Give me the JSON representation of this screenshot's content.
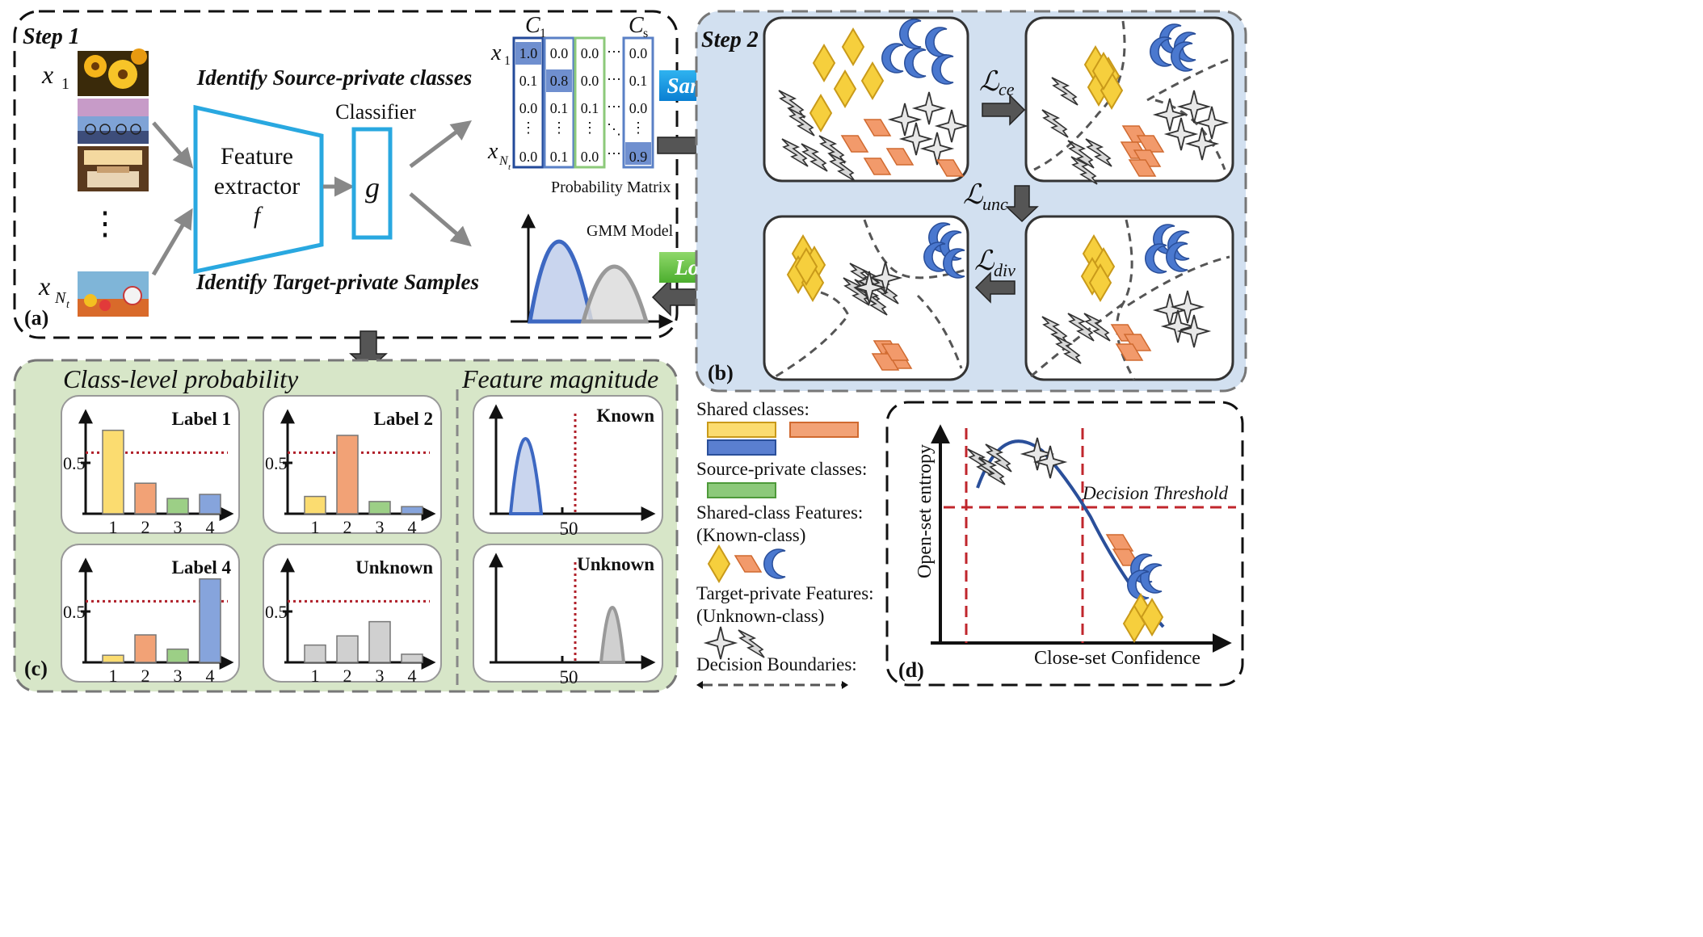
{
  "panel_a": {
    "step_label": "Step 1",
    "panel_label": "(a)",
    "input_labels": [
      "x",
      "1",
      "x",
      "N",
      "t"
    ],
    "ellipsis": "⋮",
    "feature_extractor": [
      "Feature",
      "extractor",
      "f"
    ],
    "classifier_title": "Classifier",
    "classifier_symbol": "g",
    "identify_source": "Identify Source-private classes",
    "identify_target": "Identify Target-private Samples",
    "matrix": {
      "col_labels": [
        "C",
        "1",
        "C",
        "s"
      ],
      "row_labels": [
        "x",
        "1",
        "x",
        "N",
        "t"
      ],
      "rows": [
        [
          "1.0",
          "0.0",
          "0.0",
          "0.0"
        ],
        [
          "0.1",
          "0.8",
          "0.0",
          "0.1"
        ],
        [
          "0.0",
          "0.1",
          "0.1",
          "0.0"
        ],
        [
          "0.0",
          "0.1",
          "0.0",
          "0.9"
        ]
      ],
      "caption": "Probability Matrix"
    },
    "gmm_caption": "GMM Model"
  },
  "arrows": {
    "samples": "Samples",
    "losses": "Losses"
  },
  "panel_b": {
    "step_label": "Step 2",
    "panel_label": "(b)",
    "losses": [
      "ce",
      "unc",
      "div"
    ],
    "loss_symbol": "ℒ"
  },
  "panel_c": {
    "panel_label": "(c)",
    "title_left": "Class-level probability",
    "title_right": "Feature magnitude",
    "prob_charts": [
      {
        "label": "Label 1",
        "values": [
          0.82,
          0.3,
          0.15,
          0.19
        ],
        "colors": [
          "#fbdc70",
          "#f2a276",
          "#9ccf86",
          "#86a4dc"
        ]
      },
      {
        "label": "Label 2",
        "values": [
          0.17,
          0.77,
          0.12,
          0.07
        ],
        "colors": [
          "#fbdc70",
          "#f2a276",
          "#9ccf86",
          "#86a4dc"
        ]
      },
      {
        "label": "Label 4",
        "values": [
          0.07,
          0.27,
          0.13,
          0.82
        ],
        "colors": [
          "#fbdc70",
          "#f2a276",
          "#9ccf86",
          "#86a4dc"
        ]
      },
      {
        "label": "Unknown",
        "values": [
          0.17,
          0.26,
          0.4,
          0.08
        ],
        "colors": [
          "#d0d0d0",
          "#d0d0d0",
          "#d0d0d0",
          "#d0d0d0"
        ]
      }
    ],
    "categories": [
      "1",
      "2",
      "3",
      "4"
    ],
    "tick_label": "0.5",
    "mag_charts": [
      {
        "label": "Known",
        "tick": "50"
      },
      {
        "label": "Unknown",
        "tick": "50"
      }
    ]
  },
  "legend": {
    "shared_classes": "Shared classes:",
    "source_private": "Source-private classes:",
    "shared_features": [
      "Shared-class Features:",
      "(Known-class)"
    ],
    "target_features": [
      "Target-private Features:",
      "(Unknown-class)"
    ],
    "boundaries": "Decision Boundaries:",
    "colors": {
      "yellow": "#fbdc70",
      "orange": "#f2a276",
      "blue": "#5a7fd0",
      "green": "#8cc97a"
    }
  },
  "panel_d": {
    "panel_label": "(d)",
    "y_label": "Open-set entropy",
    "x_label": "Close-set Confidence",
    "threshold_label": "Decision Threshold"
  }
}
